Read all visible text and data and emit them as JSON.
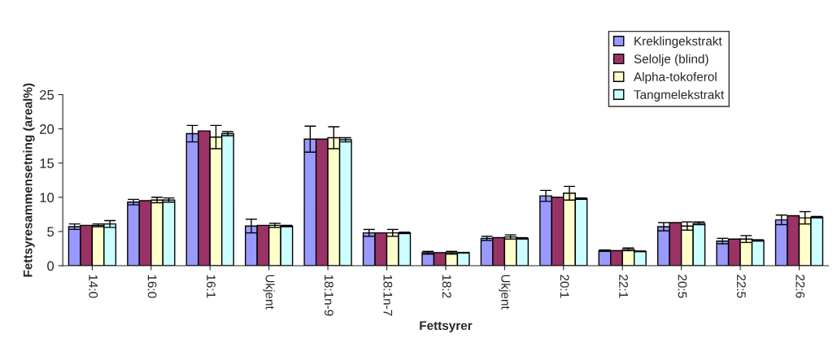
{
  "chart_data": {
    "type": "bar",
    "xlabel": "Fettsyrer",
    "ylabel": "Fettsyresammensetning (areal%)",
    "categories": [
      "14:0",
      "16:0",
      "16:1",
      "Ukjent",
      "18:1n-9",
      "18:1n-7",
      "18:2",
      "Ukjent",
      "20:1",
      "22:1",
      "20:5",
      "22:5",
      "22:6"
    ],
    "series": [
      {
        "name": "Kreklingekstrakt",
        "color": "#9999ff",
        "values": [
          5.7,
          9.3,
          19.3,
          5.8,
          18.5,
          4.8,
          1.9,
          4.0,
          10.2,
          2.2,
          5.7,
          3.6,
          6.7
        ],
        "errors": [
          0.4,
          0.4,
          1.2,
          1.0,
          1.9,
          0.5,
          0.2,
          0.3,
          0.8,
          0.1,
          0.6,
          0.4,
          0.7
        ]
      },
      {
        "name": "Selolje (blind)",
        "color": "#993366",
        "values": [
          5.9,
          9.5,
          19.7,
          5.9,
          18.5,
          4.8,
          1.9,
          4.1,
          10.0,
          2.2,
          6.3,
          3.9,
          7.3
        ]
      },
      {
        "name": "Alpha-tokoferol",
        "color": "#ffffcc",
        "values": [
          5.9,
          9.6,
          18.8,
          5.9,
          18.7,
          4.8,
          1.9,
          4.2,
          10.6,
          2.4,
          5.8,
          3.9,
          7.0
        ],
        "errors": [
          0.2,
          0.4,
          1.7,
          0.3,
          1.6,
          0.5,
          0.2,
          0.3,
          1.0,
          0.2,
          0.6,
          0.5,
          0.9
        ]
      },
      {
        "name": "Tangmelekstrakt",
        "color": "#ccffff",
        "values": [
          6.1,
          9.6,
          19.3,
          5.8,
          18.4,
          4.8,
          1.9,
          4.0,
          9.8,
          2.1,
          6.2,
          3.7,
          7.1
        ],
        "errors": [
          0.5,
          0.3,
          0.3,
          0.1,
          0.3,
          0.1,
          0.05,
          0.1,
          0.1,
          0.05,
          0.2,
          0.1,
          0.1
        ]
      }
    ],
    "ylim": [
      0,
      25
    ],
    "yticks": [
      0,
      5,
      10,
      15,
      20,
      25
    ],
    "grid": false,
    "legend": "top right"
  }
}
